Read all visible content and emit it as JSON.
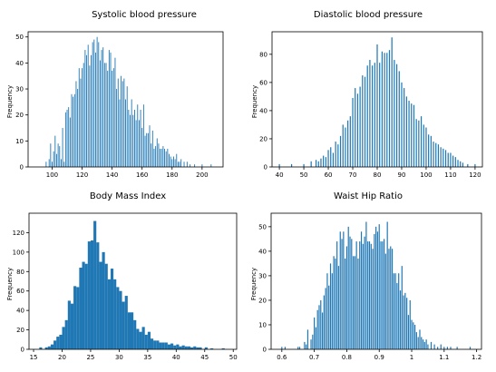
{
  "chart_data": [
    {
      "type": "bar",
      "title": "Systolic blood pressure",
      "ylabel": "Frequency",
      "xlim": [
        84,
        214
      ],
      "ylim": [
        0,
        52
      ],
      "xticks": [
        100,
        120,
        140,
        160,
        180,
        200
      ],
      "yticks": [
        0,
        10,
        20,
        30,
        40,
        50
      ],
      "bar_color": "#1f77b4",
      "bar_width": 0.5,
      "x": [
        96,
        98,
        99,
        100,
        101,
        102,
        103,
        104,
        105,
        106,
        107,
        108,
        109,
        110,
        111,
        112,
        113,
        114,
        115,
        116,
        117,
        118,
        119,
        120,
        121,
        122,
        123,
        124,
        125,
        126,
        127,
        128,
        129,
        130,
        131,
        132,
        133,
        134,
        135,
        136,
        137,
        138,
        139,
        140,
        141,
        142,
        143,
        144,
        145,
        146,
        147,
        148,
        149,
        150,
        151,
        152,
        153,
        154,
        155,
        156,
        157,
        158,
        159,
        160,
        161,
        162,
        163,
        164,
        165,
        166,
        167,
        168,
        169,
        170,
        171,
        172,
        173,
        174,
        175,
        176,
        177,
        178,
        179,
        180,
        181,
        182,
        183,
        184,
        185,
        186,
        188,
        190,
        192,
        195,
        200,
        206
      ],
      "values": [
        2,
        3,
        9,
        2,
        6,
        12,
        5,
        9,
        8,
        3,
        15,
        2,
        21,
        22,
        23,
        19,
        28,
        27,
        28,
        33,
        30,
        38,
        34,
        38,
        40,
        45,
        43,
        47,
        39,
        43,
        48,
        49,
        44,
        50,
        48,
        41,
        45,
        46,
        40,
        40,
        37,
        45,
        44,
        37,
        38,
        42,
        30,
        34,
        26,
        35,
        33,
        34,
        26,
        31,
        22,
        20,
        26,
        20,
        22,
        18,
        24,
        18,
        22,
        15,
        24,
        12,
        13,
        13,
        16,
        9,
        14,
        7,
        8,
        11,
        9,
        7,
        7,
        8,
        7,
        6,
        7,
        5,
        4,
        3,
        4,
        3,
        5,
        2,
        2,
        3,
        2,
        2,
        1,
        1,
        1,
        1
      ]
    },
    {
      "type": "bar",
      "title": "Diastolic blood pressure",
      "ylabel": "Frequency",
      "xlim": [
        37,
        123
      ],
      "ylim": [
        0,
        96
      ],
      "xticks": [
        40,
        50,
        60,
        70,
        80,
        90,
        100,
        110,
        120
      ],
      "yticks": [
        0,
        20,
        40,
        60,
        80
      ],
      "bar_color": "#1f77b4",
      "bar_width": 0.45,
      "x": [
        40,
        45,
        50,
        53,
        55,
        56,
        57,
        58,
        59,
        60,
        61,
        62,
        63,
        64,
        65,
        66,
        67,
        68,
        69,
        70,
        71,
        72,
        73,
        74,
        75,
        76,
        77,
        78,
        79,
        80,
        81,
        82,
        83,
        84,
        85,
        86,
        87,
        88,
        89,
        90,
        91,
        92,
        93,
        94,
        95,
        96,
        97,
        98,
        99,
        100,
        101,
        102,
        103,
        104,
        105,
        106,
        107,
        108,
        109,
        110,
        111,
        112,
        113,
        114,
        115,
        117,
        120
      ],
      "values": [
        2,
        2,
        2,
        4,
        5,
        4,
        6,
        8,
        7,
        12,
        14,
        10,
        18,
        16,
        22,
        30,
        28,
        33,
        36,
        49,
        56,
        52,
        57,
        65,
        64,
        72,
        76,
        72,
        74,
        87,
        74,
        82,
        81,
        81,
        83,
        92,
        76,
        73,
        68,
        60,
        56,
        50,
        47,
        45,
        44,
        34,
        33,
        36,
        30,
        28,
        23,
        22,
        18,
        17,
        16,
        14,
        13,
        12,
        10,
        10,
        8,
        7,
        5,
        4,
        3,
        2,
        2
      ]
    },
    {
      "type": "bar",
      "title": "Body Mass Index",
      "ylabel": "Frequency",
      "xlim": [
        14.2,
        50.6
      ],
      "ylim": [
        0,
        140
      ],
      "xticks": [
        15,
        20,
        25,
        30,
        35,
        40,
        45,
        50
      ],
      "yticks": [
        0,
        20,
        40,
        60,
        80,
        100,
        120
      ],
      "bar_color": "#1f77b4",
      "bar_width": 0.5,
      "x": [
        16.25,
        17.25,
        17.75,
        18.25,
        18.75,
        19.25,
        19.75,
        20.25,
        20.75,
        21.25,
        21.75,
        22.25,
        22.75,
        23.25,
        23.75,
        24.25,
        24.75,
        25.25,
        25.75,
        26.25,
        26.75,
        27.25,
        27.75,
        28.25,
        28.75,
        29.25,
        29.75,
        30.25,
        30.75,
        31.25,
        31.75,
        32.25,
        32.75,
        33.25,
        33.75,
        34.25,
        34.75,
        35.25,
        35.75,
        36.25,
        36.75,
        37.25,
        37.75,
        38.25,
        38.75,
        39.25,
        39.75,
        40.25,
        40.75,
        41.25,
        41.75,
        42.25,
        42.75,
        43.25,
        43.75,
        44.25,
        45.25,
        46.25,
        48.25
      ],
      "values": [
        2,
        2,
        3,
        5,
        9,
        13,
        15,
        23,
        30,
        50,
        47,
        65,
        64,
        84,
        90,
        88,
        111,
        112,
        132,
        110,
        90,
        100,
        88,
        72,
        83,
        72,
        64,
        60,
        49,
        55,
        38,
        38,
        30,
        21,
        18,
        23,
        15,
        18,
        11,
        9,
        9,
        7,
        7,
        7,
        5,
        6,
        4,
        5,
        3,
        4,
        3,
        3,
        2,
        3,
        2,
        2,
        2,
        1,
        1
      ]
    },
    {
      "type": "bar",
      "title": "Waist Hip Ratio",
      "ylabel": "Frequency",
      "xlim": [
        0.567,
        1.215
      ],
      "ylim": [
        0,
        55.5
      ],
      "xticks": [
        0.6,
        0.7,
        0.8,
        0.9,
        1.0,
        1.1,
        1.2
      ],
      "yticks": [
        0,
        10,
        20,
        30,
        40,
        50
      ],
      "bar_color": "#1f77b4",
      "bar_width": 0.00333,
      "x": [
        0.6,
        0.61,
        0.65,
        0.655,
        0.67,
        0.675,
        0.68,
        0.69,
        0.695,
        0.7,
        0.705,
        0.71,
        0.715,
        0.72,
        0.725,
        0.73,
        0.735,
        0.74,
        0.745,
        0.75,
        0.755,
        0.76,
        0.765,
        0.77,
        0.775,
        0.78,
        0.785,
        0.79,
        0.795,
        0.8,
        0.805,
        0.81,
        0.815,
        0.82,
        0.825,
        0.83,
        0.835,
        0.84,
        0.845,
        0.85,
        0.855,
        0.86,
        0.865,
        0.87,
        0.875,
        0.88,
        0.885,
        0.89,
        0.895,
        0.9,
        0.905,
        0.91,
        0.915,
        0.92,
        0.925,
        0.93,
        0.935,
        0.94,
        0.945,
        0.95,
        0.955,
        0.96,
        0.965,
        0.97,
        0.975,
        0.98,
        0.985,
        0.99,
        0.995,
        1.0,
        1.005,
        1.01,
        1.015,
        1.02,
        1.025,
        1.03,
        1.035,
        1.04,
        1.045,
        1.05,
        1.06,
        1.07,
        1.08,
        1.09,
        1.1,
        1.11,
        1.12,
        1.14,
        1.18
      ],
      "values": [
        1,
        1,
        1,
        1,
        3,
        2,
        8,
        4,
        6,
        13,
        9,
        16,
        18,
        20,
        15,
        22,
        25,
        31,
        26,
        35,
        31,
        38,
        37,
        44,
        34,
        48,
        45,
        48,
        37,
        42,
        50,
        46,
        45,
        38,
        38,
        44,
        37,
        44,
        48,
        43,
        46,
        52,
        44,
        44,
        43,
        41,
        47,
        50,
        48,
        51,
        44,
        44,
        45,
        39,
        52,
        41,
        42,
        41,
        31,
        31,
        27,
        31,
        24,
        34,
        22,
        23,
        21,
        14,
        20,
        12,
        11,
        10,
        7,
        5,
        8,
        5,
        4,
        3,
        4,
        2,
        3,
        2,
        1,
        2,
        1,
        1,
        1,
        1,
        1
      ]
    }
  ]
}
